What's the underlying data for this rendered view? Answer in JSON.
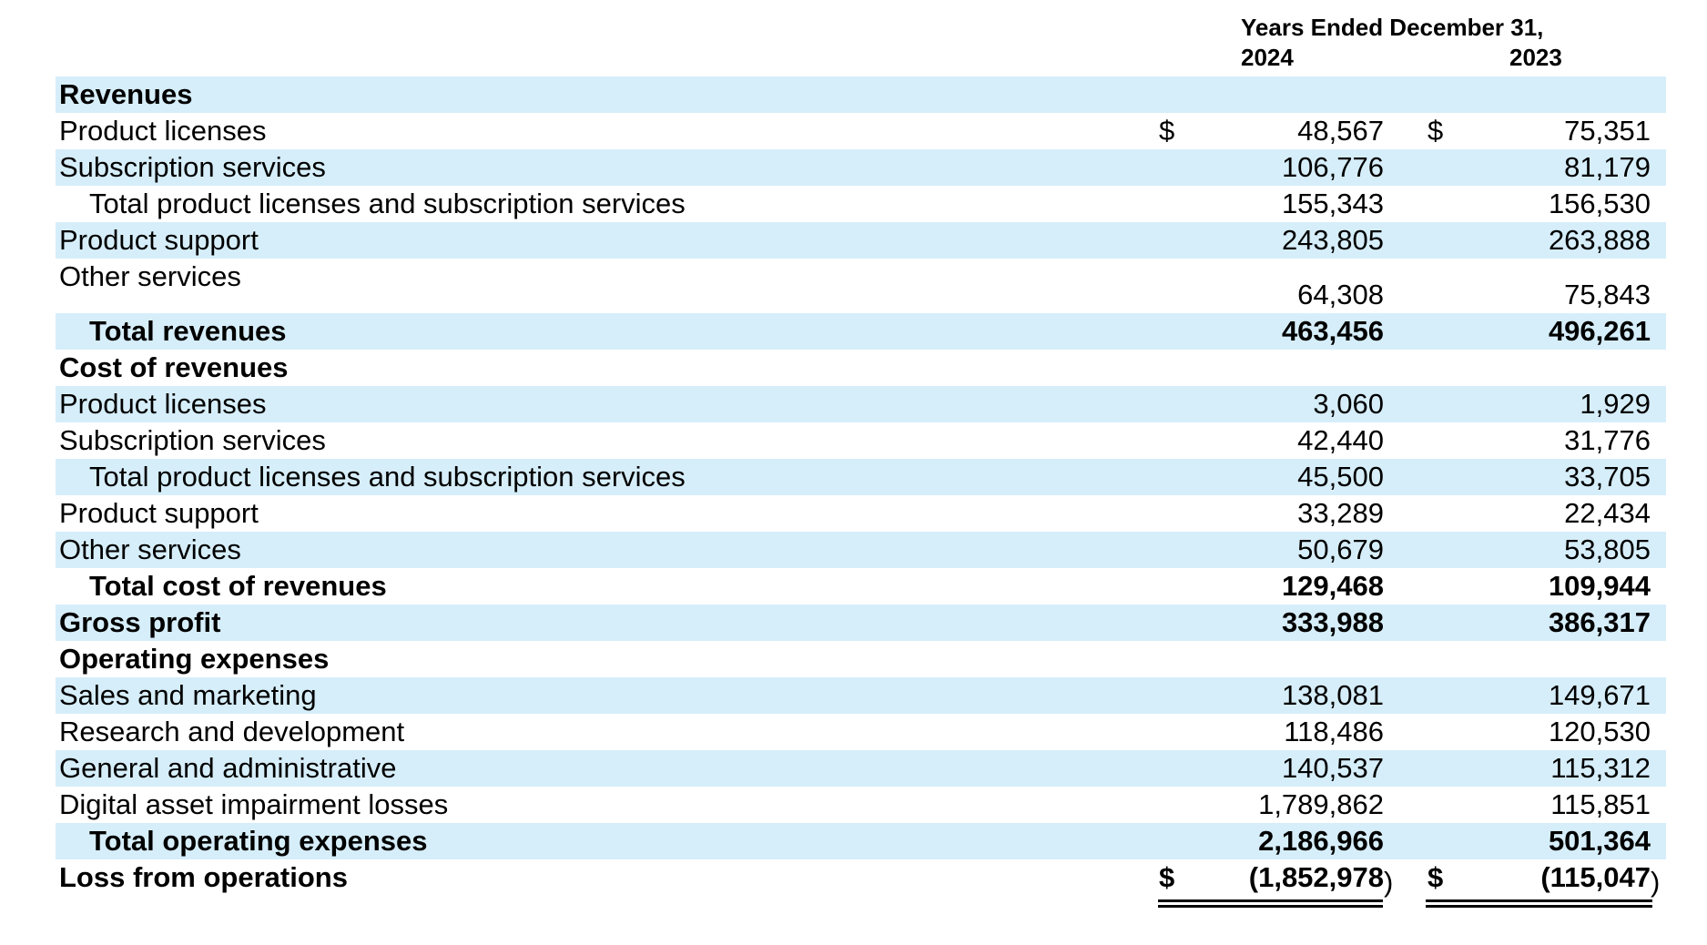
{
  "header": {
    "title": "Years Ended December 31,",
    "year1": "2024",
    "year2": "2023"
  },
  "currency_symbol": "$",
  "rows": [
    {
      "label": "Revenues",
      "v1": "",
      "v2": "",
      "bold": true,
      "indent": false,
      "currency": false
    },
    {
      "label": "Product licenses",
      "v1": "48,567",
      "v2": "75,351",
      "bold": false,
      "indent": false,
      "currency": true
    },
    {
      "label": "Subscription services",
      "v1": "106,776",
      "v2": "81,179",
      "bold": false,
      "indent": false,
      "currency": false
    },
    {
      "label": "Total product licenses and subscription services",
      "v1": "155,343",
      "v2": "156,530",
      "bold": false,
      "indent": true,
      "currency": false
    },
    {
      "label": "Product support",
      "v1": "243,805",
      "v2": "263,888",
      "bold": false,
      "indent": false,
      "currency": false
    },
    {
      "label": "Other services",
      "v1": "64,308",
      "v2": "75,843",
      "bold": false,
      "indent": false,
      "currency": false
    },
    {
      "label": "Total revenues",
      "v1": "463,456",
      "v2": "496,261",
      "bold": true,
      "indent": true,
      "currency": false
    },
    {
      "label": "Cost of revenues",
      "v1": "",
      "v2": "",
      "bold": true,
      "indent": false,
      "currency": false
    },
    {
      "label": "Product licenses",
      "v1": "3,060",
      "v2": "1,929",
      "bold": false,
      "indent": false,
      "currency": false
    },
    {
      "label": "Subscription services",
      "v1": "42,440",
      "v2": "31,776",
      "bold": false,
      "indent": false,
      "currency": false
    },
    {
      "label": "Total product licenses and subscription services",
      "v1": "45,500",
      "v2": "33,705",
      "bold": false,
      "indent": true,
      "currency": false
    },
    {
      "label": "Product support",
      "v1": "33,289",
      "v2": "22,434",
      "bold": false,
      "indent": false,
      "currency": false
    },
    {
      "label": "Other services",
      "v1": "50,679",
      "v2": "53,805",
      "bold": false,
      "indent": false,
      "currency": false
    },
    {
      "label": "Total cost of revenues",
      "v1": "129,468",
      "v2": "109,944",
      "bold": true,
      "indent": true,
      "currency": false
    },
    {
      "label": "Gross profit",
      "v1": "333,988",
      "v2": "386,317",
      "bold": true,
      "indent": false,
      "currency": false
    },
    {
      "label": "Operating expenses",
      "v1": "",
      "v2": "",
      "bold": true,
      "indent": false,
      "currency": false
    },
    {
      "label": "Sales and marketing",
      "v1": "138,081",
      "v2": "149,671",
      "bold": false,
      "indent": false,
      "currency": false
    },
    {
      "label": "Research and development",
      "v1": "118,486",
      "v2": "120,530",
      "bold": false,
      "indent": false,
      "currency": false
    },
    {
      "label": "General and administrative",
      "v1": "140,537",
      "v2": "115,312",
      "bold": false,
      "indent": false,
      "currency": false
    },
    {
      "label": "Digital asset impairment losses",
      "v1": "1,789,862",
      "v2": "115,851",
      "bold": false,
      "indent": false,
      "currency": false
    },
    {
      "label": "Total operating expenses",
      "v1": "2,186,966",
      "v2": "501,364",
      "bold": true,
      "indent": true,
      "currency": false
    },
    {
      "label": "Loss from operations",
      "v1": "(1,852,978",
      "v2": "(115,047",
      "bold": true,
      "indent": false,
      "currency": true
    }
  ],
  "closing_paren": ")"
}
